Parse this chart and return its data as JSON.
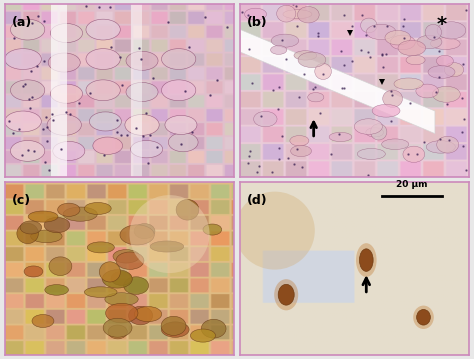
{
  "figure_bg": "#f0f0f0",
  "panel_border_color": "#cc88bb",
  "panel_labels": [
    "(a)",
    "(b)",
    "(c)",
    "(d)"
  ],
  "label_fontsize": 9,
  "label_color": "black",
  "label_fontweight": "bold",
  "scale_bar_text": "20 μm",
  "panel_a_bg": "#e8c8d8",
  "panel_b_bg": "#f0c8d8",
  "panel_c_bg": "#d4a060",
  "panel_d_bg": "#e8dcc8"
}
